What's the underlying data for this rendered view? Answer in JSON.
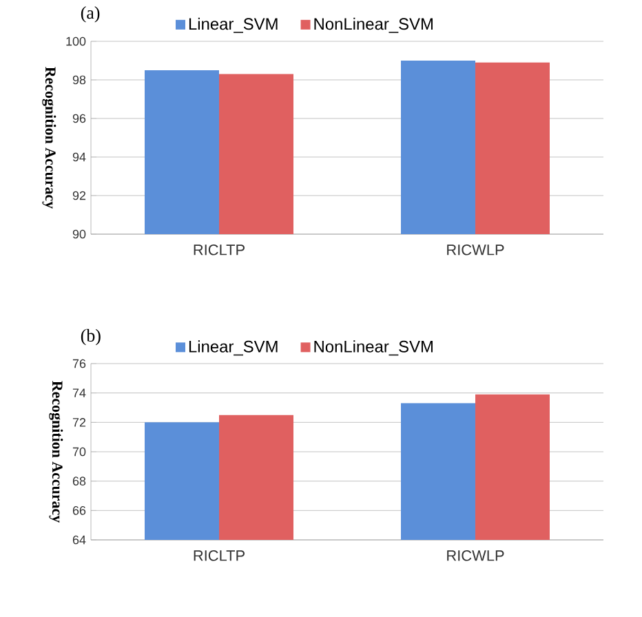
{
  "chart_data": [
    {
      "type": "bar",
      "title": "(a)",
      "ylabel": "Recognition Accuracy",
      "categories": [
        "RICLTP",
        "RICWLP"
      ],
      "ylim": [
        90,
        100
      ],
      "yticks": [
        90,
        92,
        94,
        96,
        98,
        100
      ],
      "grid": "y",
      "legend": "top",
      "series": [
        {
          "name": "Linear_SVM",
          "color": "#5b8fd9",
          "values": [
            98.5,
            99.0
          ]
        },
        {
          "name": "NonLinear_SVM",
          "color": "#e06060",
          "values": [
            98.3,
            98.9
          ]
        }
      ]
    },
    {
      "type": "bar",
      "title": "(b)",
      "ylabel": "Recognition Accuracy",
      "categories": [
        "RICLTP",
        "RICWLP"
      ],
      "ylim": [
        64,
        76
      ],
      "yticks": [
        64,
        66,
        68,
        70,
        72,
        74,
        76
      ],
      "grid": "y",
      "legend": "top",
      "series": [
        {
          "name": "Linear_SVM",
          "color": "#5b8fd9",
          "values": [
            72.0,
            73.3
          ]
        },
        {
          "name": "NonLinear_SVM",
          "color": "#e06060",
          "values": [
            72.5,
            73.9
          ]
        }
      ]
    }
  ]
}
